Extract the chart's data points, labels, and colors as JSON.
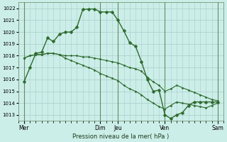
{
  "background_color": "#cceee8",
  "grid_color": "#aacccc",
  "line_color": "#2d6a2d",
  "marker_color": "#2d6a2d",
  "xlabel": "Pression niveau de la mer( hPa )",
  "ylim": [
    1012.5,
    1022.5
  ],
  "yticks": [
    1013,
    1014,
    1015,
    1016,
    1017,
    1018,
    1019,
    1020,
    1021,
    1022
  ],
  "x_day_labels": [
    "Mer",
    "Dim",
    "Jeu",
    "Ven",
    "Sam"
  ],
  "x_day_positions": [
    0,
    13,
    16,
    24,
    33
  ],
  "xlim": [
    -1,
    34
  ],
  "series": [
    {
      "x": [
        0,
        1,
        2,
        3,
        4,
        5,
        6,
        7,
        8,
        9,
        10,
        11,
        12,
        13,
        14,
        15,
        16,
        17,
        18,
        19,
        20,
        21,
        22,
        23,
        24,
        25,
        26,
        27,
        28,
        29,
        30,
        31,
        32,
        33
      ],
      "y": [
        1015.8,
        1017.0,
        1018.2,
        1018.3,
        1019.5,
        1019.2,
        1019.8,
        1020.0,
        1020.0,
        1020.4,
        1021.9,
        1021.95,
        1021.95,
        1021.7,
        1021.7,
        1021.7,
        1021.0,
        1020.1,
        1019.1,
        1018.8,
        1017.5,
        1016.0,
        1015.0,
        1015.1,
        1013.0,
        1012.7,
        1013.0,
        1013.2,
        1013.8,
        1014.1,
        1014.1,
        1014.1,
        1014.1,
        1014.1
      ],
      "marker": "D",
      "markersize": 2.5,
      "linewidth": 1.0
    },
    {
      "x": [
        0,
        1,
        2,
        3,
        4,
        5,
        6,
        7,
        8,
        9,
        10,
        11,
        12,
        13,
        14,
        15,
        16,
        17,
        18,
        19,
        20,
        21,
        22,
        23,
        24,
        25,
        26,
        27,
        28,
        29,
        30,
        31,
        32,
        33
      ],
      "y": [
        1017.8,
        1018.0,
        1018.1,
        1018.1,
        1018.2,
        1018.2,
        1018.1,
        1018.0,
        1018.0,
        1018.0,
        1017.9,
        1017.9,
        1017.8,
        1017.7,
        1017.6,
        1017.5,
        1017.4,
        1017.2,
        1017.0,
        1016.9,
        1016.7,
        1016.2,
        1015.8,
        1015.5,
        1015.0,
        1015.2,
        1015.5,
        1015.3,
        1015.1,
        1014.9,
        1014.7,
        1014.5,
        1014.3,
        1014.2
      ],
      "marker": "D",
      "markersize": 1.5,
      "linewidth": 0.8
    },
    {
      "x": [
        0,
        1,
        2,
        3,
        4,
        5,
        6,
        7,
        8,
        9,
        10,
        11,
        12,
        13,
        14,
        15,
        16,
        17,
        18,
        19,
        20,
        21,
        22,
        23,
        24,
        25,
        26,
        27,
        28,
        29,
        30,
        31,
        32,
        33
      ],
      "y": [
        1017.8,
        1018.0,
        1018.1,
        1018.1,
        1018.2,
        1018.2,
        1018.1,
        1017.8,
        1017.6,
        1017.4,
        1017.2,
        1017.0,
        1016.8,
        1016.5,
        1016.3,
        1016.1,
        1015.9,
        1015.5,
        1015.2,
        1015.0,
        1014.7,
        1014.3,
        1014.0,
        1013.7,
        1013.5,
        1013.8,
        1014.1,
        1014.0,
        1013.9,
        1013.8,
        1013.7,
        1013.6,
        1013.8,
        1014.0
      ],
      "marker": "D",
      "markersize": 1.5,
      "linewidth": 0.8
    }
  ],
  "vlines": [
    0,
    13,
    16,
    24,
    33
  ],
  "vline_color": "#88aa88"
}
